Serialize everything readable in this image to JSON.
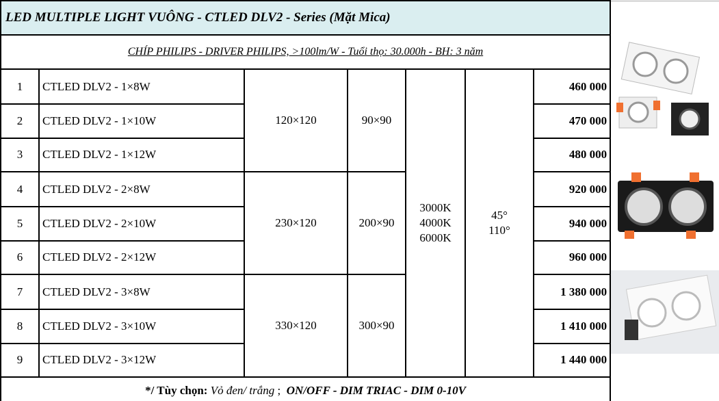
{
  "title": "LED MULTIPLE LIGHT VUÔNG - CTLED DLV2 - Series (Mặt Mica)",
  "subtitle": "CHÍP PHILIPS - DRIVER PHILIPS,  >100lm/W  - Tuổi thọ: 30.000h  -  BH: 3 năm",
  "rows": [
    {
      "no": "1",
      "model": "CTLED DLV2 - 1×8W",
      "price": "460 000"
    },
    {
      "no": "2",
      "model": "CTLED DLV2 - 1×10W",
      "price": "470 000"
    },
    {
      "no": "3",
      "model": "CTLED DLV2 - 1×12W",
      "price": "480 000"
    },
    {
      "no": "4",
      "model": "CTLED DLV2 - 2×8W",
      "price": "920 000"
    },
    {
      "no": "5",
      "model": "CTLED DLV2 - 2×10W",
      "price": "940 000"
    },
    {
      "no": "6",
      "model": "CTLED DLV2 - 2×12W",
      "price": "960 000"
    },
    {
      "no": "7",
      "model": "CTLED DLV2 - 3×8W",
      "price": "1 380 000"
    },
    {
      "no": "8",
      "model": "CTLED DLV2 - 3×10W",
      "price": "1 410 000"
    },
    {
      "no": "9",
      "model": "CTLED DLV2 - 3×12W",
      "price": "1 440 000"
    }
  ],
  "groups": [
    {
      "size": "120×120",
      "cutout": "90×90"
    },
    {
      "size": "230×120",
      "cutout": "200×90"
    },
    {
      "size": "330×120",
      "cutout": "300×90"
    }
  ],
  "color_temps": [
    "3000K",
    "4000K",
    "6000K"
  ],
  "angles": [
    "45°",
    "110°"
  ],
  "footer": {
    "label": "*/ Tùy chọn:",
    "shell": "Vỏ đen/ trắng",
    "sep": ";",
    "options": "ON/OFF - DIM TRIAC - DIM 0-10V"
  }
}
